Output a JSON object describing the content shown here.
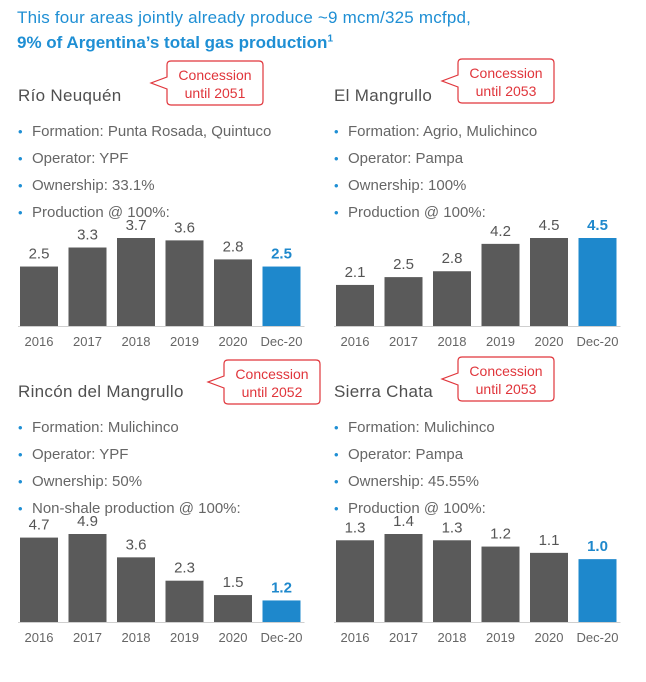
{
  "headline": {
    "line1": "This four areas jointly already produce ~9 mcm/325 mcfpd,",
    "line2": "9% of Argentina’s total gas production",
    "line2_sup": "1"
  },
  "colors": {
    "bar": "#5a5a5a",
    "highlight": "#1e88cc",
    "accent_text": "#1f8fd4",
    "callout": "#e0353b"
  },
  "panels": [
    {
      "title": "Río Neuquén",
      "concession": [
        "Concession",
        "until 2051"
      ],
      "bullets": [
        "Formation: Punta Rosada, Quintuco",
        "Operator: YPF",
        "Ownership: 33.1%",
        "Production @ 100%:"
      ]
    },
    {
      "title": "El Mangrullo",
      "concession": [
        "Concession",
        "until 2053"
      ],
      "bullets": [
        "Formation: Agrio, Mulichinco",
        "Operator: Pampa",
        "Ownership: 100%",
        "Production @ 100%:"
      ]
    },
    {
      "title": "Rincón del Mangrullo",
      "concession": [
        "Concession",
        "until 2052"
      ],
      "bullets": [
        "Formation: Mulichinco",
        "Operator: YPF",
        "Ownership: 50%",
        "Non-shale production @ 100%:"
      ]
    },
    {
      "title": "Sierra Chata",
      "concession": [
        "Concession",
        "until 2053"
      ],
      "bullets": [
        "Formation: Mulichinco",
        "Operator: Pampa",
        "Ownership: 45.55%",
        "Production @ 100%:"
      ]
    }
  ],
  "chart_data": [
    {
      "type": "bar",
      "categories": [
        "2016",
        "2017",
        "2018",
        "2019",
        "2020",
        "Dec-20"
      ],
      "values": [
        2.5,
        3.3,
        3.7,
        3.6,
        2.8,
        2.5
      ],
      "labels": [
        "2.5",
        "3.3",
        "3.7",
        "3.6",
        "2.8",
        "2.5"
      ],
      "highlight_last": true,
      "ylim": [
        0,
        3.7
      ]
    },
    {
      "type": "bar",
      "categories": [
        "2016",
        "2017",
        "2018",
        "2019",
        "2020",
        "Dec-20"
      ],
      "values": [
        2.1,
        2.5,
        2.8,
        4.2,
        4.5,
        4.5
      ],
      "labels": [
        "2.1",
        "2.5",
        "2.8",
        "4.2",
        "4.5",
        "4.5"
      ],
      "highlight_last": true,
      "ylim": [
        0,
        4.5
      ]
    },
    {
      "type": "bar",
      "categories": [
        "2016",
        "2017",
        "2018",
        "2019",
        "2020",
        "Dec-20"
      ],
      "values": [
        4.7,
        4.9,
        3.6,
        2.3,
        1.5,
        1.2
      ],
      "labels": [
        "4.7",
        "4.9",
        "3.6",
        "2.3",
        "1.5",
        "1.2"
      ],
      "highlight_last": true,
      "ylim": [
        0,
        4.9
      ]
    },
    {
      "type": "bar",
      "categories": [
        "2016",
        "2017",
        "2018",
        "2019",
        "2020",
        "Dec-20"
      ],
      "values": [
        1.3,
        1.4,
        1.3,
        1.2,
        1.1,
        1.0
      ],
      "labels": [
        "1.3",
        "1.4",
        "1.3",
        "1.2",
        "1.1",
        "1.0"
      ],
      "highlight_last": true,
      "ylim": [
        0,
        1.4
      ]
    }
  ]
}
